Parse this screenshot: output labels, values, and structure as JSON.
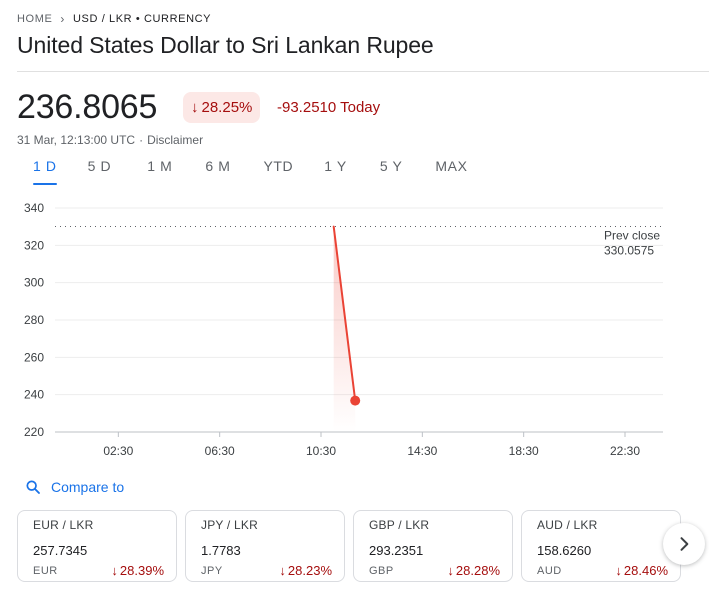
{
  "breadcrumb": {
    "home": "HOME",
    "current": "USD / LKR • CURRENCY"
  },
  "title": "United States Dollar to Sri Lankan Rupee",
  "quote": {
    "price": "236.8065",
    "percent_change": "28.25%",
    "change_today": "-93.2510 Today",
    "timestamp": "31 Mar, 12:13:00 UTC",
    "disclaimer": "Disclaimer"
  },
  "ranges": [
    "1 D",
    "5 D",
    "1 M",
    "6 M",
    "YTD",
    "1 Y",
    "5 Y",
    "MAX"
  ],
  "active_range": "1 D",
  "colors": {
    "accent": "#1a73e8",
    "negative": "#a50e0e",
    "negative_bg": "#fce8e6",
    "line": "#ea4335"
  },
  "chart_data": {
    "type": "line",
    "xlabel": "",
    "ylabel": "",
    "ylim": [
      220,
      340
    ],
    "yticks": [
      220,
      240,
      260,
      280,
      300,
      320,
      340
    ],
    "xticks": [
      "02:30",
      "06:30",
      "10:30",
      "14:30",
      "18:30",
      "22:30"
    ],
    "series": [
      {
        "x": [
          "11:00",
          "11:51"
        ],
        "values": [
          330.0575,
          236.8065
        ]
      }
    ],
    "prev_close": {
      "label": "Prev close",
      "value": "330.0575"
    },
    "grid": true
  },
  "compare": {
    "label": "Compare to"
  },
  "related": [
    {
      "pair": "EUR / LKR",
      "value": "257.7345",
      "currency": "EUR",
      "change": "28.39%"
    },
    {
      "pair": "JPY / LKR",
      "value": "1.7783",
      "currency": "JPY",
      "change": "28.23%"
    },
    {
      "pair": "GBP / LKR",
      "value": "293.2351",
      "currency": "GBP",
      "change": "28.28%"
    },
    {
      "pair": "AUD / LKR",
      "value": "158.6260",
      "currency": "AUD",
      "change": "28.46%"
    }
  ],
  "icons": {
    "down_arrow": "arrow-down-icon",
    "search": "search-icon",
    "next": "chevron-right-icon",
    "breadcrumb_sep": "chevron-right-icon"
  }
}
